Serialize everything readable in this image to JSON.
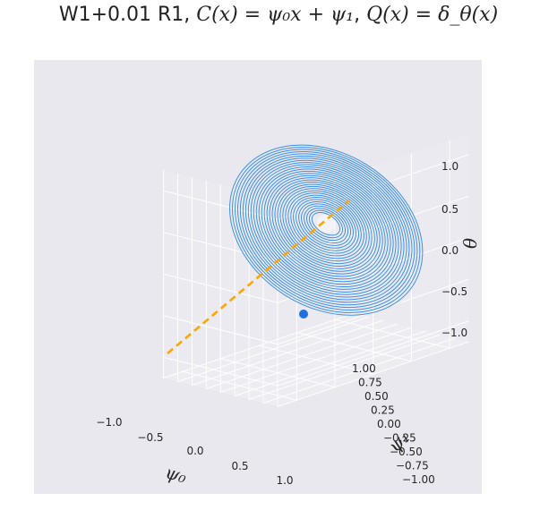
{
  "title": {
    "prefix": "W1+0.01 R1, ",
    "c_label": "C(x) = ψ₀x + ψ₁",
    "sep": ", ",
    "q_label": "Q(x) = δ_θ(x)"
  },
  "colors": {
    "background": "#e8e8ee",
    "contour": "#3d8fe6",
    "line": "#ffa500",
    "point": "#1f6fe0",
    "grid": "#ffffff"
  },
  "chart_data": {
    "type": "3d-contour",
    "title": "W1+0.01 R1, C(x) = ψ₀x + ψ₁, Q(x) = δ_θ(x)",
    "axes": {
      "x": {
        "label": "ψ₀",
        "lim": [
          -1.25,
          1.25
        ],
        "ticks": [
          -1.0,
          -0.5,
          0.0,
          0.5,
          1.0
        ],
        "tick_labels": [
          "−1.0",
          "−0.5",
          "0.0",
          "0.5",
          "1.0"
        ]
      },
      "y": {
        "label": "ψ₁",
        "lim": [
          -1.0,
          1.0
        ],
        "ticks": [
          -1.0,
          -0.75,
          -0.5,
          -0.25,
          0.0,
          0.25,
          0.5,
          0.75,
          1.0
        ],
        "tick_labels": [
          "−1.00",
          "−0.75",
          "−0.50",
          "−0.25",
          "0.00",
          "0.25",
          "0.50",
          "0.75",
          "1.00"
        ]
      },
      "z": {
        "label": "θ",
        "lim": [
          -1.25,
          1.25
        ],
        "ticks": [
          -1.0,
          -0.5,
          0.0,
          0.5,
          1.0
        ],
        "tick_labels": [
          "−1.0",
          "−0.5",
          "0.0",
          "0.5",
          "1.0"
        ]
      }
    },
    "contours": {
      "description": "concentric level sets of the objective around the minimum",
      "center": {
        "psi0": 0.0,
        "psi1": 0.0,
        "theta": 0.0
      },
      "count": 32,
      "max_radius": 1.0
    },
    "line": {
      "style": "dashed",
      "from": {
        "psi0": -1.0,
        "psi1": -1.0,
        "theta": -1.0
      },
      "to": {
        "psi0": 1.0,
        "psi1": 1.0,
        "theta": 1.0
      }
    },
    "point": {
      "psi0": 0.0,
      "psi1": 0.0,
      "theta": -1.0
    },
    "grid": true
  }
}
